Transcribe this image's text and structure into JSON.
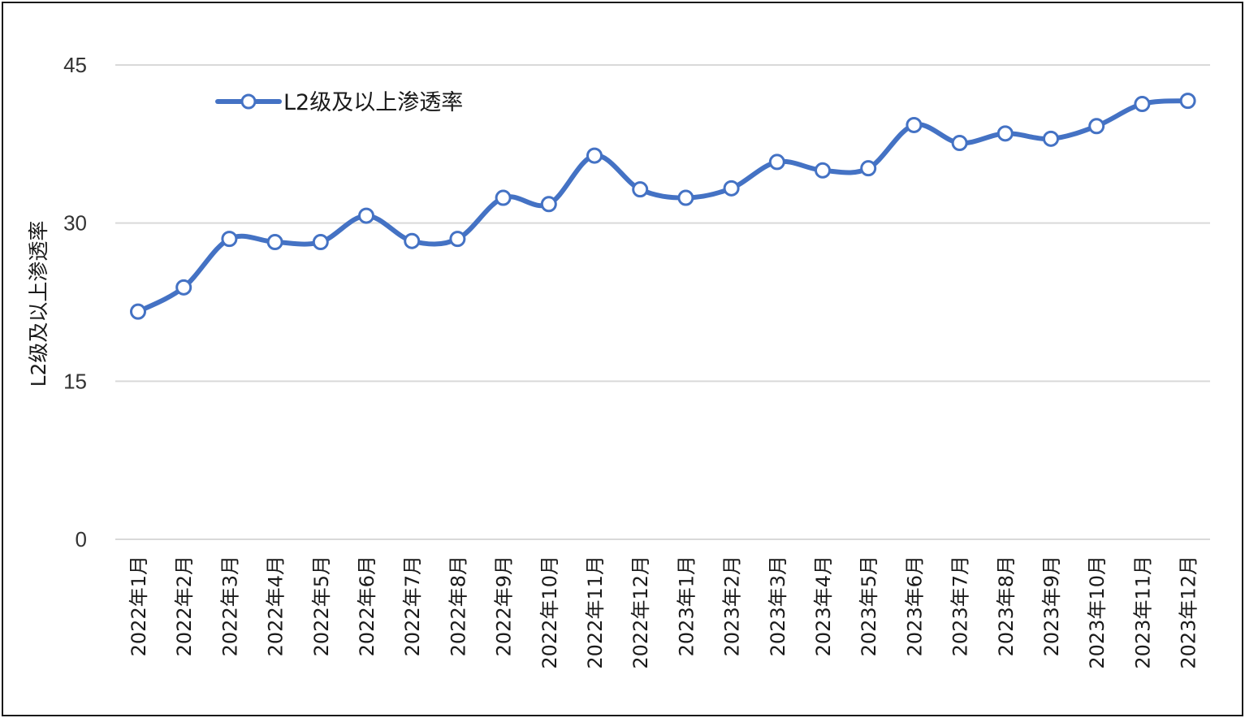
{
  "chart_data": {
    "type": "line",
    "ylabel": "L2级及以上渗透率",
    "xlabel": "",
    "ylim": [
      0,
      45
    ],
    "yticks": [
      0,
      15,
      30,
      45
    ],
    "grid": true,
    "legend_position": "top-left",
    "categories": [
      "2022年1月",
      "2022年2月",
      "2022年3月",
      "2022年4月",
      "2022年5月",
      "2022年6月",
      "2022年7月",
      "2022年8月",
      "2022年9月",
      "2022年10月",
      "2022年11月",
      "2022年12月",
      "2023年1月",
      "2023年2月",
      "2023年3月",
      "2023年4月",
      "2023年5月",
      "2023年6月",
      "2023年7月",
      "2023年8月",
      "2023年9月",
      "2023年10月",
      "2023年11月",
      "2023年12月"
    ],
    "series": [
      {
        "name": "L2级及以上渗透率",
        "color": "#4472c4",
        "values": [
          21.6,
          23.9,
          28.5,
          28.2,
          28.2,
          30.7,
          28.3,
          28.5,
          32.4,
          31.8,
          36.4,
          33.2,
          32.4,
          33.3,
          35.8,
          35.0,
          35.2,
          39.3,
          37.6,
          38.5,
          38.0,
          39.2,
          41.3,
          41.6
        ]
      }
    ]
  }
}
